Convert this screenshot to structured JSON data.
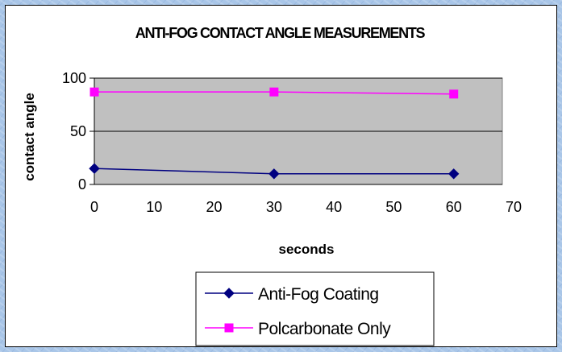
{
  "chart_data": {
    "type": "line",
    "title": "ANTI-FOG CONTACT ANGLE MEASUREMENTS",
    "xlabel": "seconds",
    "ylabel": "contact angle",
    "xlim": [
      0,
      70
    ],
    "ylim": [
      0,
      100
    ],
    "x_ticks": [
      0,
      10,
      20,
      30,
      40,
      50,
      60,
      70
    ],
    "y_ticks": [
      0,
      50,
      100
    ],
    "grid": "horizontal",
    "legend_position": "bottom",
    "series": [
      {
        "name": "Anti-Fog Coating",
        "x": [
          0,
          30,
          60
        ],
        "values": [
          15,
          10,
          10
        ],
        "color": "#000080",
        "marker": "diamond"
      },
      {
        "name": "Polcarbonate Only",
        "x": [
          0,
          30,
          60
        ],
        "values": [
          87,
          87,
          85
        ],
        "color": "#ff00ff",
        "marker": "square"
      }
    ],
    "plot_background": "#c0c0c0"
  }
}
